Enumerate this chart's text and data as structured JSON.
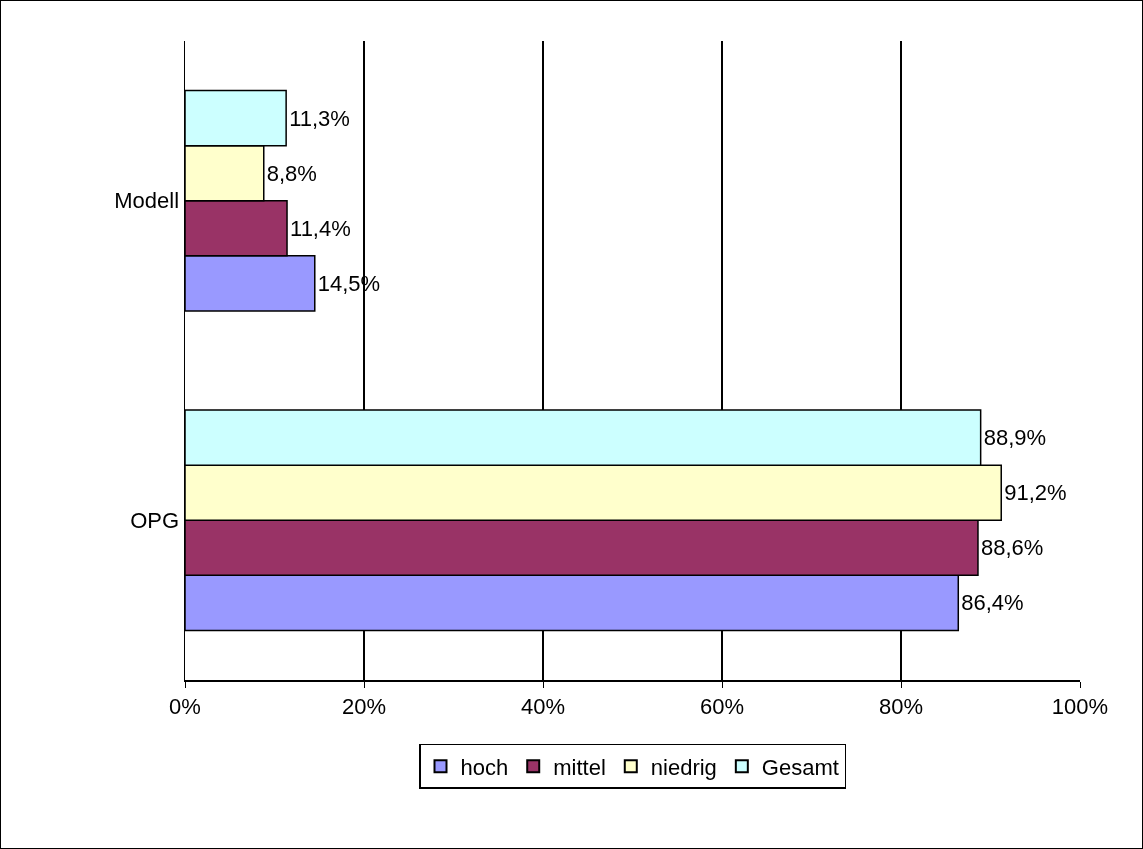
{
  "chart_data": {
    "type": "bar",
    "orientation": "horizontal",
    "categories": [
      "Modell",
      "OPG"
    ],
    "series": [
      {
        "name": "hoch",
        "color": "#9999ff",
        "values": [
          14.5,
          86.4
        ],
        "value_labels": [
          "14,5%",
          "86,4%"
        ]
      },
      {
        "name": "mittel",
        "color": "#993366",
        "values": [
          11.4,
          88.6
        ],
        "value_labels": [
          "11,4%",
          "88,6%"
        ]
      },
      {
        "name": "niedrig",
        "color": "#ffffcc",
        "values": [
          8.8,
          91.2
        ],
        "value_labels": [
          "8,8%",
          "91,2%"
        ]
      },
      {
        "name": "Gesamt",
        "color": "#ccffff",
        "values": [
          11.3,
          88.9
        ],
        "value_labels": [
          "11,3%",
          "88,9%"
        ]
      }
    ],
    "xlim": [
      0,
      100
    ],
    "xticks": [
      {
        "value": 0,
        "label": "0%"
      },
      {
        "value": 20,
        "label": "20%"
      },
      {
        "value": 40,
        "label": "40%"
      },
      {
        "value": 60,
        "label": "60%"
      },
      {
        "value": 80,
        "label": "80%"
      },
      {
        "value": 100,
        "label": "100%"
      }
    ],
    "grid": "x",
    "legend": "bottom"
  }
}
